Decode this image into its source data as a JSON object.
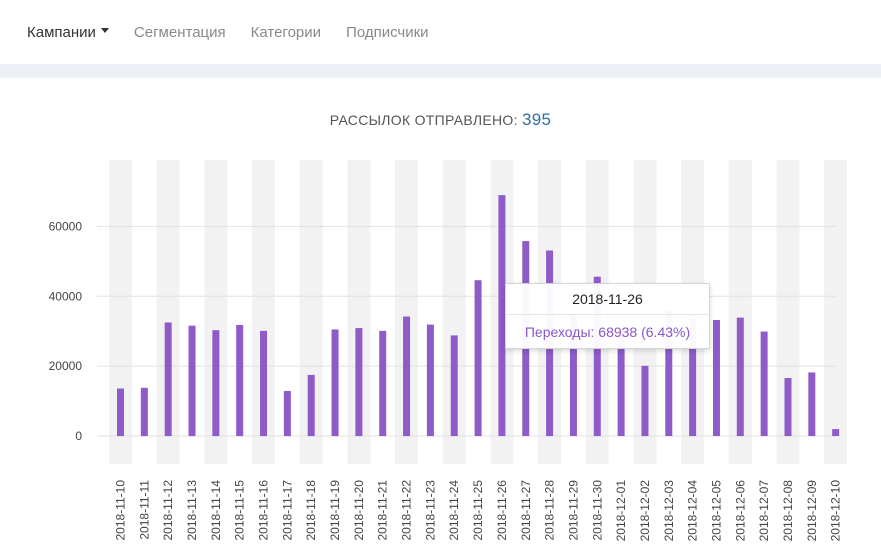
{
  "nav": {
    "items": [
      {
        "label": "Кампании",
        "active": true,
        "dropdown": true
      },
      {
        "label": "Сегментация",
        "active": false
      },
      {
        "label": "Категории",
        "active": false
      },
      {
        "label": "Подписчики",
        "active": false
      }
    ]
  },
  "summary": {
    "label": "РАССЫЛОК ОТПРАВЛЕНО:",
    "value": "395"
  },
  "tooltip": {
    "date": "2018-11-26",
    "series_label": "Переходы: 68938 (6.43%)"
  },
  "colors": {
    "bar": "#8e5bc9",
    "stripe": "#f2f2f2",
    "grid": "#e2e2e2",
    "accent": "#2f6ea3"
  },
  "chart_data": {
    "type": "bar",
    "categories": [
      "2018-11-10",
      "2018-11-11",
      "2018-11-12",
      "2018-11-13",
      "2018-11-14",
      "2018-11-15",
      "2018-11-16",
      "2018-11-17",
      "2018-11-18",
      "2018-11-19",
      "2018-11-20",
      "2018-11-21",
      "2018-11-22",
      "2018-11-23",
      "2018-11-24",
      "2018-11-25",
      "2018-11-26",
      "2018-11-27",
      "2018-11-28",
      "2018-11-29",
      "2018-11-30",
      "2018-12-01",
      "2018-12-02",
      "2018-12-03",
      "2018-12-04",
      "2018-12-05",
      "2018-12-06",
      "2018-12-07",
      "2018-12-08",
      "2018-12-09",
      "2018-12-10"
    ],
    "series": [
      {
        "name": "Переходы",
        "values": [
          13600,
          13800,
          32500,
          31600,
          30300,
          31800,
          30100,
          12900,
          17500,
          30500,
          30900,
          30100,
          34200,
          31900,
          28800,
          44600,
          68938,
          55800,
          53100,
          34500,
          45600,
          30800,
          20100,
          35900,
          33500,
          33200,
          33900,
          29900,
          16600,
          18200,
          2000
        ]
      }
    ],
    "yticks": [
      0,
      20000,
      40000,
      60000
    ],
    "ylim": [
      -8000,
      79000
    ],
    "grid": true,
    "striped_bands": true
  }
}
